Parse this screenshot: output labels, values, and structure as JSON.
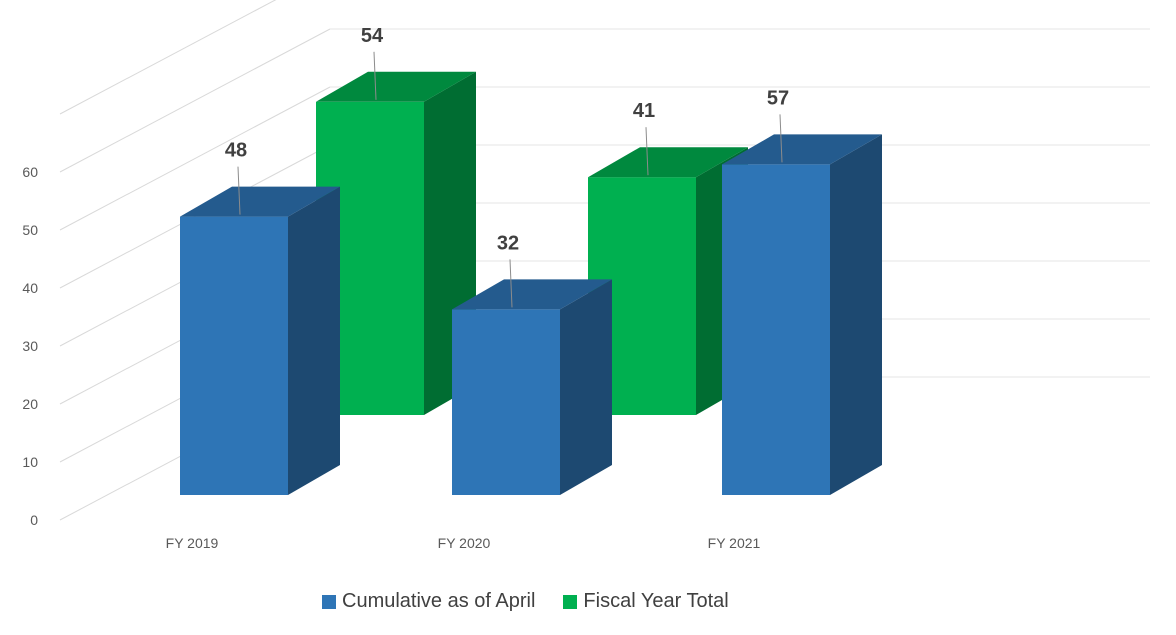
{
  "chart_data": {
    "type": "bar",
    "title": "",
    "xlabel": "",
    "ylabel": "",
    "categories": [
      "FY 2019",
      "FY 2020",
      "FY 2021"
    ],
    "y_ticks": [
      "0",
      "10",
      "20",
      "30",
      "40",
      "50",
      "60"
    ],
    "ylim": [
      0,
      70
    ],
    "grid": true,
    "legend_position": "bottom",
    "series": [
      {
        "name": "Cumulative as of April",
        "color": "#2e75b6",
        "values": [
          48,
          32,
          57
        ]
      },
      {
        "name": "Fiscal Year Total",
        "color": "#00b050",
        "values": [
          54,
          41,
          null
        ]
      }
    ]
  }
}
